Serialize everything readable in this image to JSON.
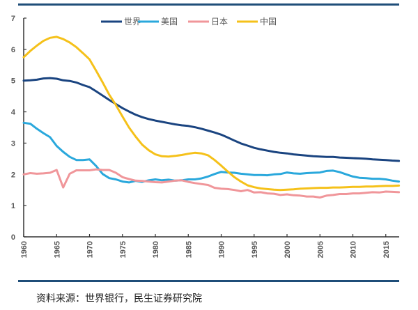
{
  "chart_data": {
    "type": "line",
    "title": "",
    "xlabel": "",
    "ylabel": "",
    "xlim": [
      1960,
      2017
    ],
    "ylim": [
      0,
      7
    ],
    "yticks": [
      "0",
      "1",
      "2",
      "3",
      "4",
      "5",
      "6",
      "7"
    ],
    "xticks": [
      "1960",
      "1965",
      "1970",
      "1975",
      "1980",
      "1985",
      "1990",
      "1995",
      "2000",
      "2005",
      "2010",
      "2015"
    ],
    "grid": false,
    "legend_position": "top-center",
    "x": [
      1960,
      1961,
      1962,
      1963,
      1964,
      1965,
      1966,
      1967,
      1968,
      1969,
      1970,
      1971,
      1972,
      1973,
      1974,
      1975,
      1976,
      1977,
      1978,
      1979,
      1980,
      1981,
      1982,
      1983,
      1984,
      1985,
      1986,
      1987,
      1988,
      1989,
      1990,
      1991,
      1992,
      1993,
      1994,
      1995,
      1996,
      1997,
      1998,
      1999,
      2000,
      2001,
      2002,
      2003,
      2004,
      2005,
      2006,
      2007,
      2008,
      2009,
      2010,
      2011,
      2012,
      2013,
      2014,
      2015,
      2016,
      2017
    ],
    "series": [
      {
        "name": "世界",
        "color": "#1a4480",
        "values": [
          5.0,
          5.01,
          5.03,
          5.07,
          5.08,
          5.06,
          5.01,
          4.99,
          4.94,
          4.86,
          4.79,
          4.66,
          4.52,
          4.38,
          4.25,
          4.12,
          4.01,
          3.91,
          3.83,
          3.77,
          3.72,
          3.68,
          3.64,
          3.6,
          3.57,
          3.55,
          3.51,
          3.46,
          3.4,
          3.34,
          3.27,
          3.18,
          3.08,
          2.99,
          2.92,
          2.85,
          2.8,
          2.76,
          2.72,
          2.69,
          2.67,
          2.64,
          2.62,
          2.6,
          2.58,
          2.57,
          2.56,
          2.56,
          2.54,
          2.53,
          2.52,
          2.51,
          2.5,
          2.48,
          2.47,
          2.46,
          2.44,
          2.43
        ]
      },
      {
        "name": "美国",
        "color": "#2aa8dc",
        "values": [
          3.65,
          3.62,
          3.46,
          3.32,
          3.19,
          2.91,
          2.72,
          2.56,
          2.46,
          2.46,
          2.48,
          2.27,
          2.01,
          1.88,
          1.84,
          1.77,
          1.74,
          1.79,
          1.76,
          1.81,
          1.84,
          1.81,
          1.83,
          1.8,
          1.81,
          1.84,
          1.84,
          1.87,
          1.93,
          2.01,
          2.08,
          2.06,
          2.05,
          2.02,
          2.0,
          1.98,
          1.98,
          1.97,
          2.0,
          2.01,
          2.06,
          2.03,
          2.02,
          2.04,
          2.05,
          2.06,
          2.11,
          2.12,
          2.07,
          2.0,
          1.93,
          1.89,
          1.88,
          1.86,
          1.86,
          1.84,
          1.8,
          1.77
        ]
      },
      {
        "name": "日本",
        "color": "#f0969a",
        "values": [
          2.0,
          2.04,
          2.02,
          2.03,
          2.05,
          2.14,
          1.58,
          2.02,
          2.13,
          2.13,
          2.13,
          2.16,
          2.14,
          2.14,
          2.05,
          1.91,
          1.85,
          1.8,
          1.79,
          1.77,
          1.75,
          1.74,
          1.77,
          1.8,
          1.81,
          1.76,
          1.72,
          1.69,
          1.66,
          1.57,
          1.54,
          1.53,
          1.5,
          1.46,
          1.5,
          1.42,
          1.43,
          1.39,
          1.38,
          1.34,
          1.36,
          1.33,
          1.32,
          1.29,
          1.29,
          1.26,
          1.32,
          1.34,
          1.37,
          1.37,
          1.39,
          1.39,
          1.41,
          1.43,
          1.42,
          1.45,
          1.44,
          1.43
        ]
      },
      {
        "name": "中国",
        "color": "#f5c11a",
        "values": [
          5.75,
          5.95,
          6.12,
          6.27,
          6.37,
          6.4,
          6.33,
          6.22,
          6.07,
          5.88,
          5.68,
          5.32,
          4.94,
          4.55,
          4.22,
          3.85,
          3.5,
          3.21,
          2.95,
          2.77,
          2.64,
          2.58,
          2.57,
          2.59,
          2.62,
          2.66,
          2.69,
          2.67,
          2.61,
          2.46,
          2.28,
          2.09,
          1.91,
          1.77,
          1.65,
          1.59,
          1.55,
          1.53,
          1.51,
          1.5,
          1.51,
          1.52,
          1.54,
          1.55,
          1.56,
          1.57,
          1.57,
          1.58,
          1.58,
          1.59,
          1.6,
          1.6,
          1.61,
          1.61,
          1.62,
          1.63,
          1.63,
          1.64
        ]
      }
    ]
  },
  "source_note": "资料来源：世界银行，民生证券研究院"
}
